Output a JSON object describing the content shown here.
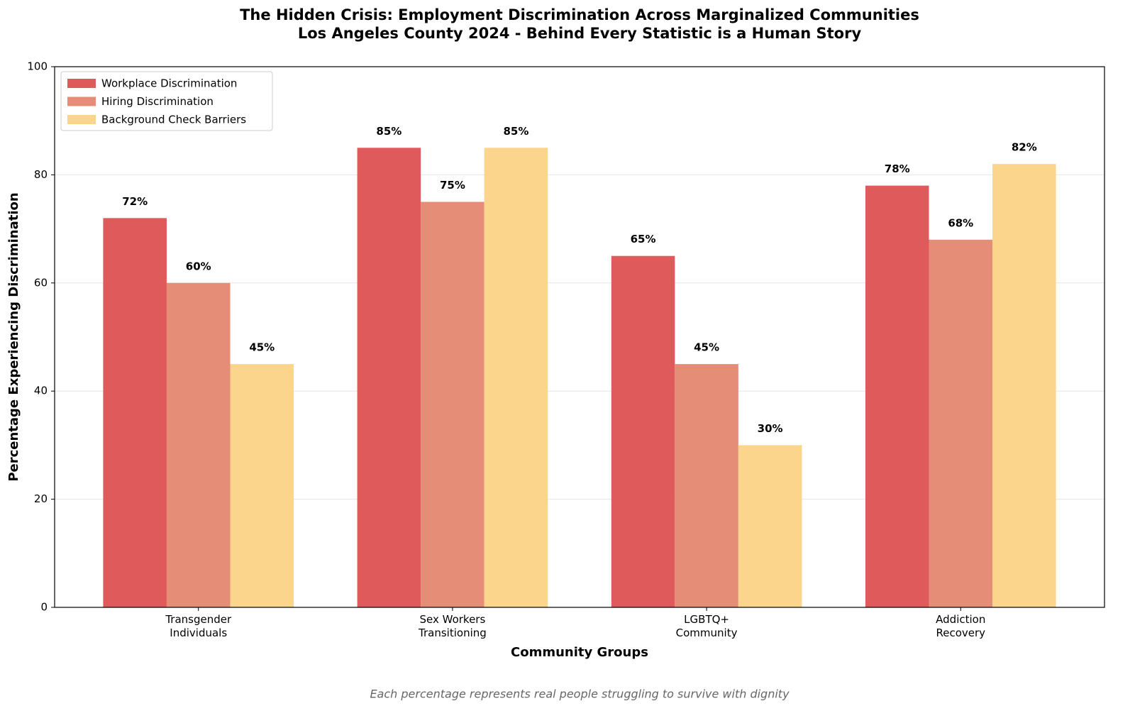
{
  "chart_data": {
    "type": "bar",
    "title": "The Hidden Crisis: Employment Discrimination Across Marginalized Communities",
    "subtitle": "Los Angeles County 2024 - Behind Every Statistic is a Human Story",
    "x_label": "Community Groups",
    "y_label": "Percentage Experiencing Discrimination",
    "annotation": "Each percentage represents real people struggling to survive with dignity",
    "categories": [
      "Transgender\nIndividuals",
      "Sex Workers\nTransitioning",
      "LGBTQ+\nCommunity",
      "Addiction\nRecovery"
    ],
    "series": [
      {
        "name": "Workplace Discrimination",
        "color": "#df5b5b",
        "values": [
          72,
          85,
          65,
          78
        ],
        "value_labels": [
          "72%",
          "85%",
          "65%",
          "78%"
        ]
      },
      {
        "name": "Hiring Discrimination",
        "color": "#e68d78",
        "values": [
          60,
          75,
          45,
          68
        ],
        "value_labels": [
          "60%",
          "75%",
          "45%",
          "68%"
        ]
      },
      {
        "name": "Background Check Barriers",
        "color": "#fbd58c",
        "values": [
          45,
          85,
          30,
          82
        ],
        "value_labels": [
          "45%",
          "85%",
          "30%",
          "82%"
        ]
      }
    ],
    "ylim": [
      0,
      100
    ],
    "yticks": [
      0,
      20,
      40,
      60,
      80,
      100
    ],
    "grid": true,
    "legend": "upper left"
  }
}
